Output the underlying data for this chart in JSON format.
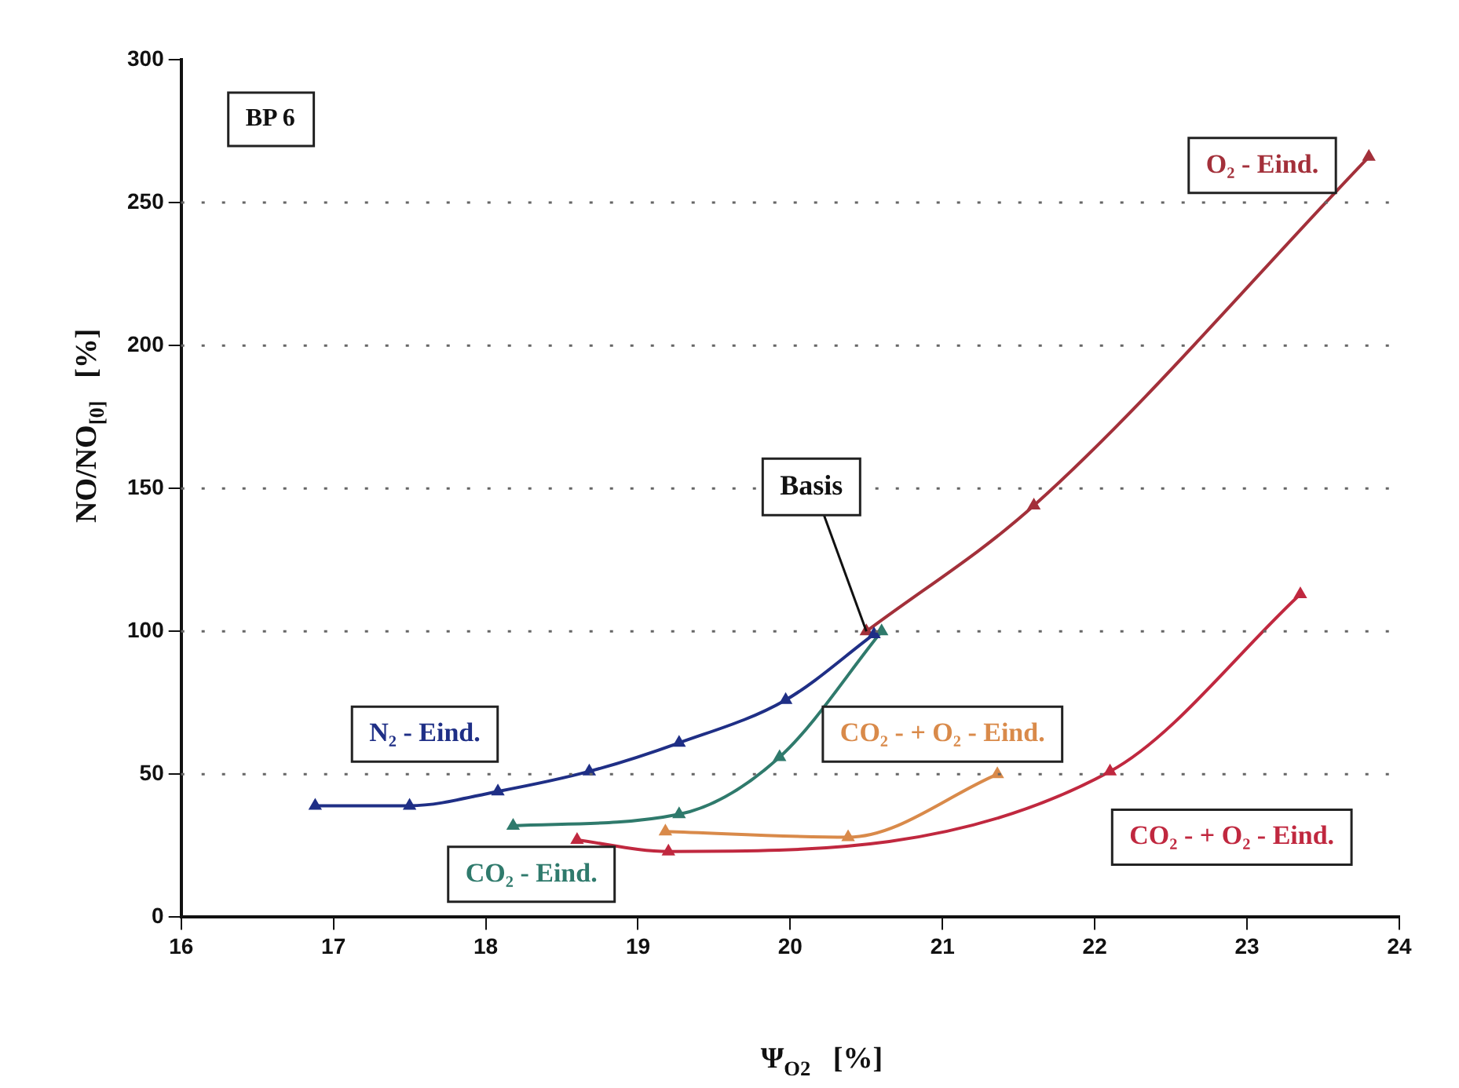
{
  "chart_data": {
    "type": "line",
    "xlabel": "Ψ$_{O2}$   [%]",
    "ylabel": "NO/NO$_{[0]}$   [%]",
    "xlim": [
      16,
      24
    ],
    "xticks": [
      16,
      17,
      18,
      19,
      20,
      21,
      22,
      23,
      24
    ],
    "ylim": [
      0,
      300
    ],
    "yticks": [
      0,
      50,
      100,
      150,
      200,
      250,
      300
    ],
    "grid": "y",
    "marker": "triangle",
    "legend": false,
    "annotations": [
      "BP 6",
      {
        "text": "Basis",
        "x": 20.5,
        "y": 100
      }
    ],
    "series": [
      {
        "name": "N₂ - Eind.",
        "color": "#1f2f86",
        "x": [
          16.88,
          17.5,
          18.08,
          18.68,
          19.27,
          19.97,
          20.55
        ],
        "values": [
          39,
          39,
          44,
          51,
          61,
          76,
          99
        ]
      },
      {
        "name": "CO₂ - Eind.",
        "color": "#2f7a6c",
        "x": [
          18.18,
          19.27,
          19.93,
          20.6
        ],
        "values": [
          32,
          36,
          56,
          100
        ]
      },
      {
        "name": "O₂ - Eind.",
        "color": "#a3303a",
        "x": [
          20.5,
          21.6,
          23.8
        ],
        "values": [
          100,
          144,
          266
        ]
      },
      {
        "name": "CO₂ - + O₂ - Eind.",
        "color": "#d98a4a",
        "x": [
          19.18,
          20.38,
          21.36
        ],
        "values": [
          30,
          28,
          50
        ]
      },
      {
        "name": "CO₂ - + O₂ - Eind.",
        "color": "#c0283f",
        "x": [
          18.6,
          19.2,
          22.1,
          23.35
        ],
        "values": [
          27,
          23,
          51,
          113
        ]
      }
    ]
  }
}
